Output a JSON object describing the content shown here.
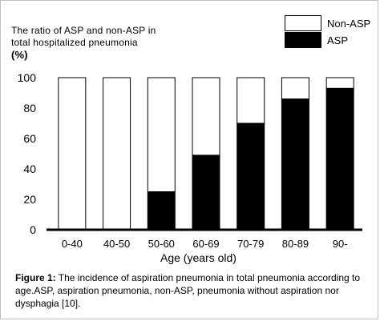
{
  "chart_data": {
    "type": "bar",
    "stacked": true,
    "ylabel_lines": [
      "The ratio of ASP and non-ASP in",
      "total  hospitalized pneumonia"
    ],
    "ylabel_unit": "(%)",
    "xlabel": "Age (years old)",
    "categories": [
      "0-40",
      "40-50",
      "50-60",
      "60-69",
      "70-79",
      "80-89",
      "90-"
    ],
    "series": [
      {
        "name": "ASP",
        "values": [
          0,
          0,
          25,
          49,
          70,
          86,
          93
        ],
        "color": "#000000"
      },
      {
        "name": "Non-ASP",
        "values": [
          100,
          100,
          75,
          51,
          30,
          14,
          7
        ],
        "color": "#ffffff"
      }
    ],
    "ylim": [
      0,
      100
    ],
    "yticks": [
      0,
      20,
      40,
      60,
      80,
      100
    ],
    "legend_position": "top-right",
    "grid": false
  },
  "legend": {
    "items": [
      {
        "label": "Non-ASP",
        "color": "#ffffff"
      },
      {
        "label": "ASP",
        "color": "#000000"
      }
    ]
  },
  "caption": {
    "label": "Figure 1:",
    "text": " The incidence of aspiration pneumonia in total pneumonia according to age.ASP, aspiration pneumonia, non-ASP, pneumonia without aspiration nor dysphagia [10]."
  }
}
